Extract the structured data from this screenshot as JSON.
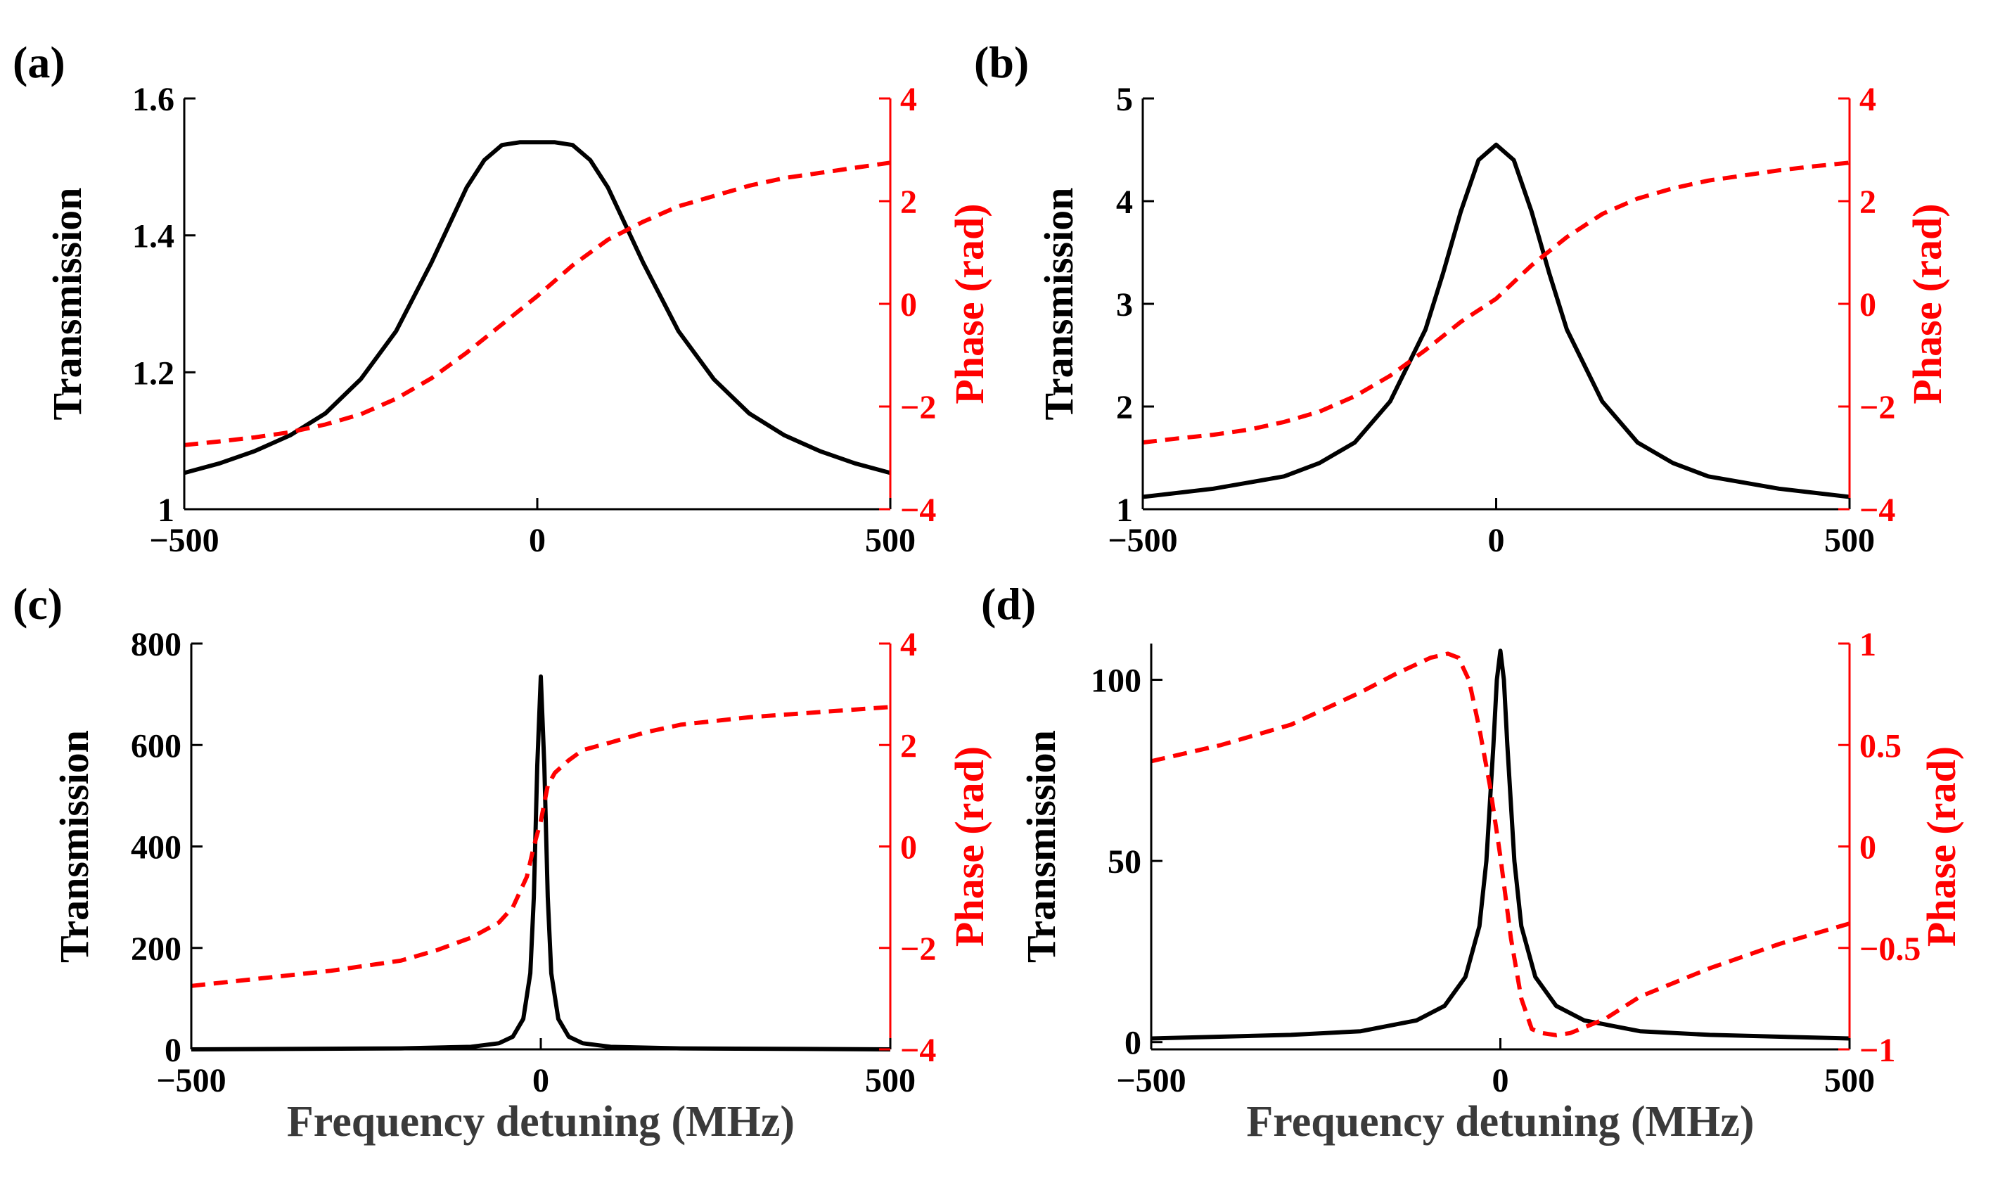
{
  "chart_data": [
    {
      "type": "line",
      "panel_label": "(a)",
      "xlabel": "",
      "ylabel": "Transmission",
      "y2label": "Phase (rad)",
      "xlim": [
        -500,
        500
      ],
      "ylim": [
        1,
        1.6
      ],
      "y2lim": [
        -4,
        4
      ],
      "xticks": [
        -500,
        0,
        500
      ],
      "xtick_labels": [
        "−500",
        "0",
        "500"
      ],
      "yticks": [
        1,
        1.2,
        1.4,
        1.6
      ],
      "ytick_labels": [
        "1",
        "1.2",
        "1.4",
        "1.6"
      ],
      "y2ticks": [
        -4,
        -2,
        0,
        2,
        4
      ],
      "y2tick_labels": [
        "−4",
        "−2",
        "0",
        "2",
        "4"
      ],
      "colors": {
        "transmission": "#000000",
        "phase": "#ff0000"
      },
      "series": [
        {
          "name": "Transmission",
          "axis": "left",
          "style": "solid",
          "x": [
            -500,
            -450,
            -400,
            -350,
            -300,
            -250,
            -200,
            -150,
            -100,
            -75,
            -50,
            -25,
            0,
            25,
            50,
            75,
            100,
            150,
            200,
            250,
            300,
            350,
            400,
            450,
            500
          ],
          "y": [
            1.053,
            1.067,
            1.085,
            1.108,
            1.14,
            1.19,
            1.26,
            1.36,
            1.47,
            1.51,
            1.532,
            1.536,
            1.536,
            1.536,
            1.532,
            1.51,
            1.47,
            1.36,
            1.26,
            1.19,
            1.14,
            1.108,
            1.085,
            1.067,
            1.053
          ]
        },
        {
          "name": "Phase",
          "axis": "right",
          "style": "dashed",
          "x": [
            -500,
            -450,
            -400,
            -350,
            -300,
            -250,
            -200,
            -150,
            -100,
            -50,
            0,
            50,
            100,
            150,
            200,
            250,
            300,
            350,
            400,
            450,
            500
          ],
          "y": [
            -2.75,
            -2.68,
            -2.6,
            -2.5,
            -2.35,
            -2.15,
            -1.85,
            -1.45,
            -0.95,
            -0.4,
            0.15,
            0.75,
            1.25,
            1.6,
            1.9,
            2.1,
            2.3,
            2.45,
            2.55,
            2.65,
            2.75
          ]
        }
      ]
    },
    {
      "type": "line",
      "panel_label": "(b)",
      "xlabel": "",
      "ylabel": "Transmission",
      "y2label": "Phase (rad)",
      "xlim": [
        -500,
        500
      ],
      "ylim": [
        1,
        5
      ],
      "y2lim": [
        -4,
        4
      ],
      "xticks": [
        -500,
        0,
        500
      ],
      "xtick_labels": [
        "−500",
        "0",
        "500"
      ],
      "yticks": [
        1,
        2,
        3,
        4,
        5
      ],
      "ytick_labels": [
        "1",
        "2",
        "3",
        "4",
        "5"
      ],
      "y2ticks": [
        -4,
        -2,
        0,
        2,
        4
      ],
      "y2tick_labels": [
        "−4",
        "−2",
        "0",
        "2",
        "4"
      ],
      "colors": {
        "transmission": "#000000",
        "phase": "#ff0000"
      },
      "series": [
        {
          "name": "Transmission",
          "axis": "left",
          "style": "solid",
          "x": [
            -500,
            -400,
            -300,
            -250,
            -200,
            -150,
            -100,
            -75,
            -50,
            -25,
            0,
            25,
            50,
            75,
            100,
            150,
            200,
            250,
            300,
            400,
            500
          ],
          "y": [
            1.12,
            1.2,
            1.32,
            1.45,
            1.65,
            2.05,
            2.75,
            3.3,
            3.9,
            4.4,
            4.55,
            4.4,
            3.9,
            3.3,
            2.75,
            2.05,
            1.65,
            1.45,
            1.32,
            1.2,
            1.12
          ]
        },
        {
          "name": "Phase",
          "axis": "right",
          "style": "dashed",
          "x": [
            -500,
            -450,
            -400,
            -350,
            -300,
            -250,
            -200,
            -150,
            -100,
            -50,
            0,
            50,
            100,
            150,
            200,
            250,
            300,
            350,
            400,
            450,
            500
          ],
          "y": [
            -2.7,
            -2.62,
            -2.55,
            -2.45,
            -2.3,
            -2.1,
            -1.8,
            -1.4,
            -0.9,
            -0.35,
            0.1,
            0.75,
            1.3,
            1.75,
            2.05,
            2.25,
            2.4,
            2.5,
            2.6,
            2.68,
            2.75
          ]
        }
      ]
    },
    {
      "type": "line",
      "panel_label": "(c)",
      "xlabel": "Frequency detuning (MHz)",
      "ylabel": "Transmission",
      "y2label": "Phase (rad)",
      "xlim": [
        -500,
        500
      ],
      "ylim": [
        0,
        800
      ],
      "y2lim": [
        -4,
        4
      ],
      "xticks": [
        -500,
        0,
        500
      ],
      "xtick_labels": [
        "−500",
        "0",
        "500"
      ],
      "yticks": [
        0,
        200,
        400,
        600,
        800
      ],
      "ytick_labels": [
        "0",
        "200",
        "400",
        "600",
        "800"
      ],
      "y2ticks": [
        -4,
        -2,
        0,
        2,
        4
      ],
      "y2tick_labels": [
        "−4",
        "−2",
        "0",
        "2",
        "4"
      ],
      "colors": {
        "transmission": "#000000",
        "phase": "#ff0000"
      },
      "series": [
        {
          "name": "Transmission",
          "axis": "left",
          "style": "solid",
          "x": [
            -500,
            -200,
            -100,
            -60,
            -40,
            -25,
            -15,
            -10,
            -5,
            0,
            5,
            10,
            15,
            25,
            40,
            60,
            100,
            200,
            500
          ],
          "y": [
            0,
            2,
            5,
            12,
            25,
            60,
            150,
            300,
            560,
            735,
            560,
            300,
            150,
            60,
            25,
            12,
            5,
            2,
            0
          ]
        },
        {
          "name": "Phase",
          "axis": "right",
          "style": "dashed",
          "x": [
            -500,
            -400,
            -300,
            -200,
            -150,
            -100,
            -60,
            -40,
            -20,
            -10,
            0,
            10,
            20,
            40,
            60,
            100,
            150,
            200,
            300,
            400,
            500
          ],
          "y": [
            -2.75,
            -2.6,
            -2.45,
            -2.25,
            -2.05,
            -1.8,
            -1.5,
            -1.2,
            -0.6,
            0.0,
            0.5,
            1.2,
            1.45,
            1.7,
            1.9,
            2.05,
            2.25,
            2.4,
            2.55,
            2.65,
            2.75
          ]
        }
      ]
    },
    {
      "type": "line",
      "panel_label": "(d)",
      "xlabel": "Frequency detuning (MHz)",
      "ylabel": "Transmission",
      "y2label": "Phase (rad)",
      "xlim": [
        -500,
        500
      ],
      "ylim": [
        -2,
        110
      ],
      "y2lim": [
        -1,
        1
      ],
      "xticks": [
        -500,
        0,
        500
      ],
      "xtick_labels": [
        "−500",
        "0",
        "500"
      ],
      "yticks": [
        0,
        50,
        100
      ],
      "ytick_labels": [
        "0",
        "50",
        "100"
      ],
      "y2ticks": [
        -1,
        -0.5,
        0,
        0.5,
        1
      ],
      "y2tick_labels": [
        "−1",
        "−0.5",
        "0",
        "0.5",
        "1"
      ],
      "colors": {
        "transmission": "#000000",
        "phase": "#ff0000"
      },
      "series": [
        {
          "name": "Transmission",
          "axis": "left",
          "style": "solid",
          "x": [
            -500,
            -300,
            -200,
            -120,
            -80,
            -50,
            -30,
            -20,
            -10,
            -5,
            0,
            5,
            10,
            20,
            30,
            50,
            80,
            120,
            200,
            300,
            500
          ],
          "y": [
            1,
            2,
            3,
            6,
            10,
            18,
            32,
            50,
            82,
            100,
            108,
            100,
            82,
            50,
            32,
            18,
            10,
            6,
            3,
            2,
            1
          ]
        },
        {
          "name": "Phase",
          "axis": "right",
          "style": "dashed",
          "x": [
            -500,
            -400,
            -300,
            -200,
            -150,
            -100,
            -75,
            -60,
            -45,
            -30,
            -15,
            0,
            15,
            30,
            45,
            60,
            80,
            100,
            150,
            200,
            300,
            400,
            500
          ],
          "y": [
            0.42,
            0.5,
            0.6,
            0.76,
            0.85,
            0.93,
            0.95,
            0.93,
            0.82,
            0.58,
            0.3,
            -0.05,
            -0.45,
            -0.75,
            -0.9,
            -0.92,
            -0.93,
            -0.92,
            -0.85,
            -0.74,
            -0.6,
            -0.48,
            -0.38
          ]
        }
      ]
    }
  ]
}
